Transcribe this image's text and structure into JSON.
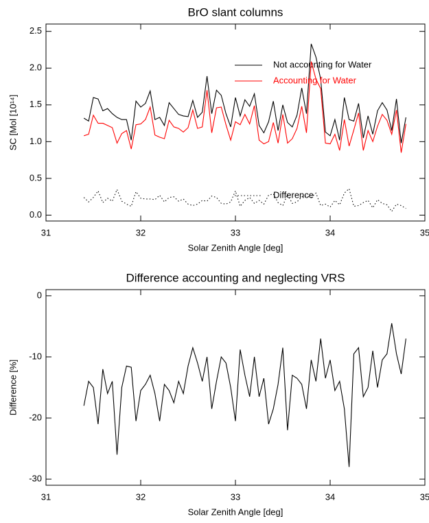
{
  "chart_data": [
    {
      "type": "line",
      "title": "BrO slant columns",
      "xlabel": "Solar Zenith Angle [deg]",
      "ylabel": "SC [Mol [10¹⁴]",
      "xlim": [
        31,
        35
      ],
      "xticks": [
        31,
        32,
        33,
        34,
        35
      ],
      "ylim": [
        -0.08,
        2.6
      ],
      "yticks": [
        {
          "value": 0,
          "label": "0.0"
        },
        0.5,
        {
          "value": 1,
          "label": "1.0"
        },
        1.5,
        {
          "value": 2,
          "label": "2.0"
        },
        2.5
      ],
      "x": [
        31.4,
        31.45,
        31.5,
        31.55,
        31.6,
        31.65,
        31.7,
        31.75,
        31.8,
        31.85,
        31.9,
        31.95,
        32.0,
        32.05,
        32.1,
        32.15,
        32.2,
        32.25,
        32.3,
        32.35,
        32.4,
        32.45,
        32.5,
        32.55,
        32.6,
        32.65,
        32.7,
        32.75,
        32.8,
        32.85,
        32.9,
        32.95,
        33.0,
        33.05,
        33.1,
        33.15,
        33.2,
        33.25,
        33.3,
        33.35,
        33.4,
        33.45,
        33.5,
        33.55,
        33.6,
        33.65,
        33.7,
        33.75,
        33.8,
        33.85,
        33.9,
        33.95,
        34.0,
        34.05,
        34.1,
        34.15,
        34.2,
        34.25,
        34.3,
        34.35,
        34.4,
        34.45,
        34.5,
        34.55,
        34.6,
        34.65,
        34.7,
        34.75,
        34.8
      ],
      "series": [
        {
          "name": "Not accounting for Water",
          "color": "#000000",
          "linestyle": "solid",
          "values": [
            1.32,
            1.28,
            1.6,
            1.58,
            1.42,
            1.45,
            1.38,
            1.33,
            1.3,
            1.3,
            1.02,
            1.55,
            1.47,
            1.52,
            1.69,
            1.3,
            1.33,
            1.22,
            1.53,
            1.45,
            1.37,
            1.35,
            1.34,
            1.56,
            1.33,
            1.4,
            1.89,
            1.38,
            1.7,
            1.63,
            1.38,
            1.2,
            1.6,
            1.35,
            1.57,
            1.48,
            1.65,
            1.22,
            1.12,
            1.27,
            1.55,
            1.15,
            1.5,
            1.26,
            1.2,
            1.36,
            1.73,
            1.38,
            2.33,
            2.15,
            1.85,
            1.13,
            1.08,
            1.3,
            1.02,
            1.6,
            1.3,
            1.28,
            1.52,
            1.05,
            1.35,
            1.1,
            1.42,
            1.53,
            1.43,
            1.15,
            1.58,
            0.98,
            1.33
          ]
        },
        {
          "name": "Accounting for Water",
          "color": "#ff0000",
          "linestyle": "solid",
          "values": [
            1.08,
            1.1,
            1.36,
            1.25,
            1.25,
            1.22,
            1.19,
            0.98,
            1.11,
            1.15,
            0.9,
            1.23,
            1.24,
            1.3,
            1.47,
            1.09,
            1.06,
            1.04,
            1.29,
            1.2,
            1.18,
            1.13,
            1.19,
            1.43,
            1.18,
            1.2,
            1.7,
            1.12,
            1.46,
            1.47,
            1.23,
            1.02,
            1.27,
            1.23,
            1.37,
            1.24,
            1.49,
            1.02,
            0.97,
            1.0,
            1.26,
            0.98,
            1.37,
            0.98,
            1.04,
            1.18,
            1.48,
            1.12,
            2.09,
            1.85,
            1.72,
            0.98,
            0.97,
            1.1,
            0.88,
            1.3,
            0.94,
            1.16,
            1.39,
            0.88,
            1.15,
            1.0,
            1.21,
            1.37,
            1.29,
            1.1,
            1.43,
            0.85,
            1.24
          ]
        },
        {
          "name": "Difference",
          "color": "#000000",
          "linestyle": "dotted",
          "values": [
            0.24,
            0.18,
            0.24,
            0.33,
            0.17,
            0.23,
            0.19,
            0.35,
            0.19,
            0.15,
            0.12,
            0.32,
            0.23,
            0.22,
            0.22,
            0.21,
            0.27,
            0.18,
            0.24,
            0.25,
            0.19,
            0.22,
            0.15,
            0.13,
            0.15,
            0.2,
            0.19,
            0.26,
            0.24,
            0.16,
            0.15,
            0.18,
            0.33,
            0.12,
            0.2,
            0.24,
            0.16,
            0.2,
            0.15,
            0.27,
            0.29,
            0.17,
            0.13,
            0.28,
            0.16,
            0.18,
            0.25,
            0.26,
            0.24,
            0.3,
            0.13,
            0.15,
            0.11,
            0.2,
            0.14,
            0.3,
            0.36,
            0.12,
            0.13,
            0.17,
            0.2,
            0.1,
            0.21,
            0.16,
            0.14,
            0.05,
            0.15,
            0.13,
            0.09
          ]
        }
      ]
    },
    {
      "type": "line",
      "title": "Difference accounting and neglecting VRS",
      "xlabel": "Solar Zenith Angle [deg]",
      "ylabel": "Difference [%]",
      "xlim": [
        31,
        35
      ],
      "xticks": [
        31,
        32,
        33,
        34,
        35
      ],
      "ylim": [
        -31,
        1
      ],
      "yticks": [
        0,
        -10,
        -20,
        -30
      ],
      "x": [
        31.4,
        31.45,
        31.5,
        31.55,
        31.6,
        31.65,
        31.7,
        31.75,
        31.8,
        31.85,
        31.9,
        31.95,
        32.0,
        32.05,
        32.1,
        32.15,
        32.2,
        32.25,
        32.3,
        32.35,
        32.4,
        32.45,
        32.5,
        32.55,
        32.6,
        32.65,
        32.7,
        32.75,
        32.8,
        32.85,
        32.9,
        32.95,
        33.0,
        33.05,
        33.1,
        33.15,
        33.2,
        33.25,
        33.3,
        33.35,
        33.4,
        33.45,
        33.5,
        33.55,
        33.6,
        33.65,
        33.7,
        33.75,
        33.8,
        33.85,
        33.9,
        33.95,
        34.0,
        34.05,
        34.1,
        34.15,
        34.2,
        34.25,
        34.3,
        34.35,
        34.4,
        34.45,
        34.5,
        34.55,
        34.6,
        34.65,
        34.7,
        34.75,
        34.8
      ],
      "series": [
        {
          "color": "#000000",
          "linestyle": "solid",
          "values": [
            -18,
            -14,
            -15,
            -21,
            -12,
            -16,
            -14,
            -26,
            -15,
            -11.5,
            -11.7,
            -20.5,
            -15.5,
            -14.5,
            -13,
            -16,
            -20.5,
            -14.5,
            -15.5,
            -17.5,
            -14,
            -16,
            -11.5,
            -8.5,
            -11,
            -14,
            -10,
            -18.5,
            -14,
            -10,
            -11,
            -15,
            -20.5,
            -8.8,
            -13,
            -16.5,
            -10,
            -16.5,
            -13.5,
            -21,
            -18.5,
            -14.5,
            -8.5,
            -22,
            -13,
            -13.5,
            -14.5,
            -18.5,
            -10.5,
            -14,
            -7,
            -13.5,
            -10.5,
            -15.5,
            -14,
            -18.5,
            -28,
            -9.5,
            -8.5,
            -16.5,
            -15,
            -9,
            -15,
            -10.5,
            -9.5,
            -4.5,
            -9.5,
            -12.8,
            -7
          ]
        }
      ]
    }
  ]
}
